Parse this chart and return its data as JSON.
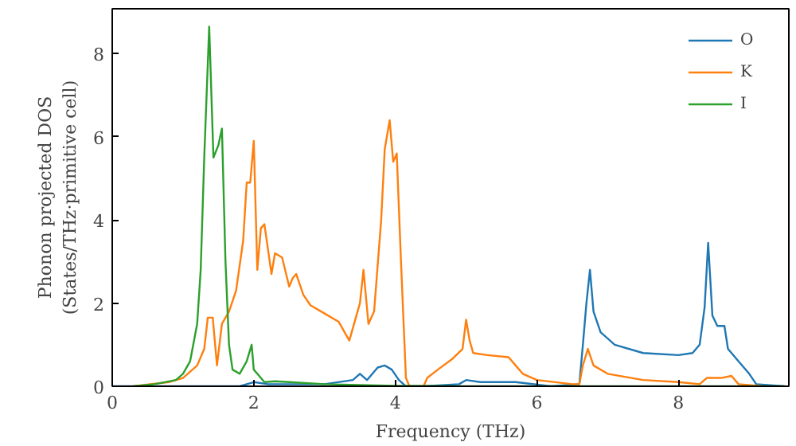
{
  "chart_data": {
    "type": "line",
    "xlabel": "Frequency (THz)",
    "ylabel": "Phonon projected DOS\n(States/THz·primitive cell)",
    "xlim": [
      0,
      9.56
    ],
    "ylim": [
      0,
      9.08
    ],
    "xticks": [
      0,
      2,
      4,
      6,
      8
    ],
    "yticks": [
      0,
      2,
      4,
      6,
      8
    ],
    "grid": false,
    "legend": "top right",
    "series": [
      {
        "name": "O",
        "color": "#1f77b4",
        "x": [
          0,
          1.8,
          2.0,
          2.2,
          3.0,
          3.4,
          3.5,
          3.6,
          3.75,
          3.85,
          3.95,
          4.05,
          4.15,
          4.4,
          4.9,
          5.0,
          5.2,
          5.7,
          6.2,
          6.6,
          6.65,
          6.7,
          6.75,
          6.8,
          6.9,
          7.1,
          7.5,
          8.0,
          8.2,
          8.3,
          8.37,
          8.42,
          8.48,
          8.55,
          8.65,
          8.7,
          8.85,
          9.0,
          9.1,
          9.5
        ],
        "values": [
          0,
          0,
          0.1,
          0.05,
          0.05,
          0.15,
          0.3,
          0.15,
          0.45,
          0.5,
          0.4,
          0.15,
          0,
          0,
          0.05,
          0.15,
          0.1,
          0.1,
          0,
          0.05,
          1.0,
          2.0,
          2.8,
          1.8,
          1.3,
          1.0,
          0.8,
          0.75,
          0.8,
          1.0,
          1.9,
          3.45,
          1.7,
          1.45,
          1.45,
          0.9,
          0.6,
          0.3,
          0.05,
          0
        ]
      },
      {
        "name": "K",
        "color": "#ff7f0e",
        "x": [
          0.3,
          0.8,
          1.0,
          1.2,
          1.3,
          1.35,
          1.42,
          1.48,
          1.55,
          1.65,
          1.75,
          1.85,
          1.9,
          1.95,
          2.0,
          2.05,
          2.1,
          2.15,
          2.25,
          2.3,
          2.4,
          2.5,
          2.55,
          2.6,
          2.7,
          2.8,
          3.0,
          3.2,
          3.35,
          3.5,
          3.55,
          3.62,
          3.7,
          3.8,
          3.85,
          3.92,
          3.97,
          4.02,
          4.08,
          4.15,
          4.2,
          4.4,
          4.45,
          4.6,
          4.8,
          4.95,
          5.0,
          5.05,
          5.1,
          5.3,
          5.6,
          5.7,
          5.8,
          6.0,
          6.5,
          6.6,
          6.65,
          6.72,
          6.8,
          7.0,
          7.5,
          8.0,
          8.3,
          8.4,
          8.6,
          8.75,
          8.85,
          9.2
        ],
        "values": [
          0,
          0.1,
          0.2,
          0.5,
          0.9,
          1.65,
          1.65,
          0.5,
          1.5,
          1.8,
          2.3,
          3.5,
          4.9,
          4.9,
          5.9,
          2.8,
          3.8,
          3.9,
          2.7,
          3.2,
          3.1,
          2.4,
          2.6,
          2.7,
          2.2,
          1.95,
          1.75,
          1.55,
          1.1,
          2.0,
          2.8,
          1.5,
          1.8,
          4.0,
          5.7,
          6.4,
          5.4,
          5.6,
          3.0,
          0.2,
          0,
          0,
          0.2,
          0.4,
          0.65,
          0.9,
          1.6,
          1.1,
          0.8,
          0.75,
          0.7,
          0.5,
          0.3,
          0.15,
          0.05,
          0.05,
          0.5,
          0.9,
          0.5,
          0.3,
          0.15,
          0.1,
          0.05,
          0.2,
          0.2,
          0.25,
          0.05,
          0
        ]
      },
      {
        "name": "I",
        "color": "#2ca02c",
        "x": [
          0.3,
          0.6,
          0.9,
          1.0,
          1.1,
          1.2,
          1.25,
          1.3,
          1.37,
          1.43,
          1.5,
          1.55,
          1.6,
          1.65,
          1.7,
          1.8,
          1.9,
          1.97,
          2.0,
          2.05,
          2.15,
          2.3,
          2.5,
          3.0,
          3.5,
          4.0,
          5.0,
          9.5
        ],
        "values": [
          0,
          0.05,
          0.15,
          0.3,
          0.6,
          1.5,
          2.8,
          5.5,
          8.65,
          5.5,
          5.8,
          6.2,
          3.0,
          1.0,
          0.4,
          0.3,
          0.6,
          1.0,
          0.4,
          0.3,
          0.1,
          0.12,
          0.1,
          0.05,
          0.03,
          0.01,
          0,
          0
        ]
      }
    ]
  }
}
